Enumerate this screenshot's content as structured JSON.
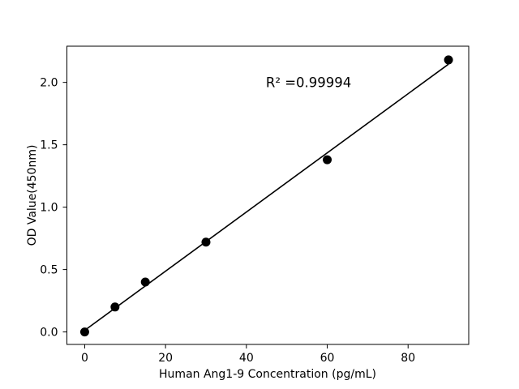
{
  "figure": {
    "background_color": "#ffffff",
    "foreground_color": "#000000"
  },
  "chart_data": {
    "type": "scatter",
    "title": "",
    "xlabel": "Human Ang1-9 Concentration (pg/mL)",
    "ylabel": "OD Value(450nm)",
    "series": [
      {
        "name": "standard-points",
        "x": [
          0,
          7.5,
          15,
          30,
          60,
          90
        ],
        "y": [
          0.0,
          0.2,
          0.4,
          0.72,
          1.38,
          2.18
        ]
      }
    ],
    "fit": {
      "type": "linear",
      "slope": 0.0237,
      "intercept": 0.013,
      "x_start": 0,
      "x_end": 90
    },
    "annotation": {
      "text": "R² =0.99994",
      "x": 55.4,
      "y": 2.0
    },
    "xticks": {
      "values": [
        0,
        20,
        40,
        60,
        80
      ],
      "labels": [
        "0",
        "20",
        "40",
        "60",
        "80"
      ]
    },
    "yticks": {
      "values": [
        0.0,
        0.5,
        1.0,
        1.5,
        2.0
      ],
      "labels": [
        "0.0",
        "0.5",
        "1.0",
        "1.5",
        "2.0"
      ]
    },
    "xlim": [
      -4.4,
      95.0
    ],
    "ylim": [
      -0.1,
      2.29
    ],
    "grid": false,
    "legend": null,
    "marker_color": "#000000",
    "marker_radius_px": 5.5,
    "line_color": "#000000"
  }
}
